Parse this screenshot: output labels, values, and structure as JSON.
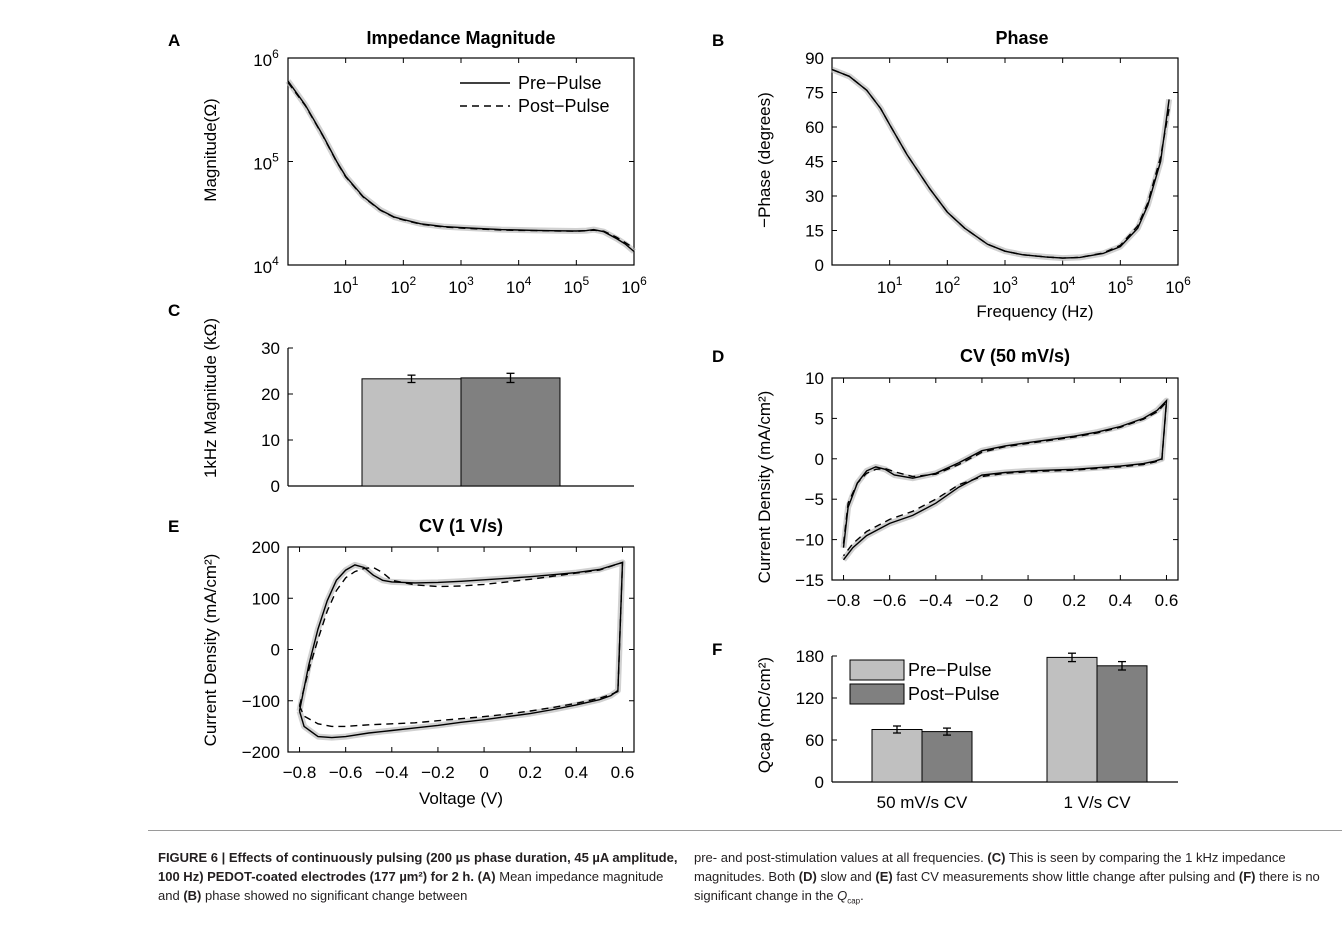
{
  "figure": {
    "panels": {
      "A": {
        "letter": "A",
        "title": "Impedance Magnitude",
        "ylabel": "Magnitude(Ω)",
        "legend": [
          "Pre−Pulse",
          "Post−Pulse"
        ]
      },
      "B": {
        "letter": "B",
        "title": "Phase",
        "ylabel": "−Phase (degrees)",
        "xlabel": "Frequency (Hz)"
      },
      "C": {
        "letter": "C",
        "ylabel": "1kHz Magnitude (kΩ)"
      },
      "D": {
        "letter": "D",
        "title": "CV (50 mV/s)",
        "ylabel": "Current Density (mA/cm²)"
      },
      "E": {
        "letter": "E",
        "title": "CV (1 V/s)",
        "ylabel": "Current Density (mA/cm²)",
        "xlabel": "Voltage (V)"
      },
      "F": {
        "letter": "F",
        "ylabel": "Qcap (mC/cm²)",
        "legend": [
          "Pre−Pulse",
          "Post−Pulse"
        ]
      }
    }
  },
  "colors": {
    "pre": "#c0c0c0",
    "post": "#808080",
    "band": "#bdbdbd",
    "line": "#000000"
  },
  "caption": {
    "left_bold": "FIGURE 6 | Effects of continuously pulsing (200 µs phase duration, 45 µA amplitude, 100 Hz) PEDOT-coated electrodes (177 µm²) for 2 h. (A)",
    "left_rest": " Mean impedance magnitude and ",
    "left_b2": "(B)",
    "left_rest2": " phase showed no significant change between",
    "right_1": "pre- and post-stimulation values at all frequencies. ",
    "right_c": "(C)",
    "right_2": " This is seen by comparing the 1 kHz impedance magnitudes. Both ",
    "right_d": "(D)",
    "right_3": " slow and ",
    "right_e": "(E)",
    "right_4": " fast CV measurements show little change after pulsing and ",
    "right_f": "(F)",
    "right_5": " there is no significant change in the ",
    "right_q": "Q",
    "right_qsub": "cap",
    "right_end": "."
  },
  "chart_data": [
    {
      "panel": "A",
      "type": "line",
      "title": "Impedance Magnitude",
      "xlabel": "",
      "ylabel": "Magnitude(Ω)",
      "xscale": "log",
      "yscale": "log",
      "xlim": [
        1,
        1000000
      ],
      "ylim": [
        10000,
        1000000
      ],
      "xticks": [
        "10^1",
        "10^2",
        "10^3",
        "10^4",
        "10^5",
        "10^6"
      ],
      "yticks": [
        "10^4",
        "10^5",
        "10^6"
      ],
      "legend_position": "top-right",
      "series": [
        {
          "name": "Pre−Pulse",
          "x": [
            1,
            2,
            4,
            7,
            10,
            20,
            40,
            70,
            100,
            200,
            500,
            1000,
            2000,
            5000,
            10000,
            20000,
            50000,
            100000,
            150000,
            200000,
            300000,
            500000,
            700000,
            1000000
          ],
          "y": [
            600000,
            350000,
            180000,
            100000,
            72000,
            46000,
            34000,
            29000,
            27500,
            25000,
            23500,
            23000,
            22500,
            22000,
            21800,
            21600,
            21400,
            21300,
            21500,
            22000,
            21000,
            18000,
            16000,
            13500
          ]
        },
        {
          "name": "Post−Pulse",
          "x": [
            1,
            2,
            4,
            7,
            10,
            20,
            40,
            70,
            100,
            200,
            500,
            1000,
            2000,
            5000,
            10000,
            20000,
            50000,
            100000,
            150000,
            200000,
            300000,
            500000,
            700000,
            1000000
          ],
          "y": [
            580000,
            345000,
            178000,
            99000,
            71000,
            45500,
            33800,
            28800,
            27300,
            24800,
            23300,
            22800,
            22300,
            21800,
            21600,
            21500,
            21300,
            21200,
            21400,
            21700,
            21200,
            18500,
            16500,
            14500
          ]
        }
      ]
    },
    {
      "panel": "B",
      "type": "line",
      "title": "Phase",
      "xlabel": "Frequency (Hz)",
      "ylabel": "−Phase (degrees)",
      "xscale": "log",
      "xlim": [
        1,
        1000000
      ],
      "ylim": [
        0,
        90
      ],
      "xticks": [
        "10^1",
        "10^2",
        "10^3",
        "10^4",
        "10^5",
        "10^6"
      ],
      "yticks": [
        0,
        15,
        30,
        45,
        60,
        75,
        90
      ],
      "series": [
        {
          "name": "Pre−Pulse",
          "x": [
            1,
            2,
            4,
            7,
            10,
            20,
            50,
            100,
            200,
            500,
            1000,
            2000,
            5000,
            10000,
            20000,
            50000,
            100000,
            200000,
            300000,
            500000,
            700000
          ],
          "y": [
            85,
            82,
            76,
            68,
            61,
            48,
            33,
            23,
            16,
            9,
            6,
            4.5,
            3.5,
            3,
            3.3,
            5,
            8,
            16,
            26,
            45,
            72
          ]
        },
        {
          "name": "Post−Pulse",
          "x": [
            1,
            2,
            4,
            7,
            10,
            20,
            50,
            100,
            200,
            500,
            1000,
            2000,
            5000,
            10000,
            20000,
            50000,
            100000,
            200000,
            300000,
            500000,
            700000
          ],
          "y": [
            85,
            82,
            76,
            68,
            61,
            48,
            33,
            23,
            16,
            9,
            6,
            4.5,
            3.5,
            3,
            3.3,
            5.2,
            8.5,
            17,
            27,
            47,
            68
          ]
        }
      ]
    },
    {
      "panel": "C",
      "type": "bar",
      "ylabel": "1kHz Magnitude (kΩ)",
      "ylim": [
        0,
        30
      ],
      "yticks": [
        0,
        10,
        20,
        30
      ],
      "categories": [
        "Pre−Pulse",
        "Post−Pulse"
      ],
      "values": [
        23.3,
        23.5
      ],
      "errors": [
        0.8,
        1.0
      ]
    },
    {
      "panel": "D",
      "type": "line",
      "title": "CV (50 mV/s)",
      "xlabel": "",
      "ylabel": "Current Density (mA/cm²)",
      "xlim": [
        -0.85,
        0.65
      ],
      "ylim": [
        -15,
        10
      ],
      "xticks": [
        -0.8,
        -0.6,
        -0.4,
        -0.2,
        0,
        0.2,
        0.4,
        0.6
      ],
      "yticks": [
        -15,
        -10,
        -5,
        0,
        5,
        10
      ],
      "series": [
        {
          "name": "Pre−Pulse",
          "x": [
            -0.8,
            -0.78,
            -0.74,
            -0.7,
            -0.66,
            -0.62,
            -0.58,
            -0.5,
            -0.4,
            -0.3,
            -0.2,
            -0.1,
            0,
            0.1,
            0.2,
            0.3,
            0.4,
            0.5,
            0.56,
            0.6,
            0.6,
            0.58,
            0.55,
            0.5,
            0.4,
            0.3,
            0.2,
            0.1,
            0,
            -0.1,
            -0.2,
            -0.3,
            -0.4,
            -0.5,
            -0.6,
            -0.7,
            -0.76,
            -0.8
          ],
          "y": [
            -11,
            -6,
            -3,
            -1.5,
            -1,
            -1.3,
            -2,
            -2.4,
            -1.8,
            -0.5,
            1,
            1.6,
            2,
            2.4,
            2.8,
            3.3,
            4,
            5,
            6,
            7.2,
            7.2,
            0,
            -0.3,
            -0.6,
            -0.9,
            -1.1,
            -1.3,
            -1.4,
            -1.5,
            -1.7,
            -2,
            -3.5,
            -5.5,
            -7,
            -8,
            -9.5,
            -11,
            -12.5
          ]
        },
        {
          "name": "Post−Pulse",
          "x": [
            -0.8,
            -0.78,
            -0.74,
            -0.7,
            -0.66,
            -0.62,
            -0.58,
            -0.5,
            -0.4,
            -0.3,
            -0.2,
            -0.1,
            0,
            0.1,
            0.2,
            0.3,
            0.4,
            0.5,
            0.56,
            0.6,
            0.6,
            0.58,
            0.55,
            0.5,
            0.4,
            0.3,
            0.2,
            0.1,
            0,
            -0.1,
            -0.2,
            -0.3,
            -0.4,
            -0.5,
            -0.6,
            -0.7,
            -0.76,
            -0.8
          ],
          "y": [
            -10.5,
            -5.5,
            -3,
            -1.8,
            -1.3,
            -1.2,
            -1.6,
            -2.2,
            -1.9,
            -0.7,
            0.8,
            1.5,
            1.9,
            2.3,
            2.7,
            3.2,
            3.9,
            4.9,
            5.8,
            7,
            7,
            -0.1,
            -0.4,
            -0.7,
            -1,
            -1.2,
            -1.4,
            -1.5,
            -1.6,
            -1.8,
            -2.2,
            -3.2,
            -5,
            -6.5,
            -7.5,
            -9,
            -10.5,
            -12
          ]
        }
      ]
    },
    {
      "panel": "E",
      "type": "line",
      "title": "CV (1 V/s)",
      "xlabel": "Voltage (V)",
      "ylabel": "Current Density (mA/cm²)",
      "xlim": [
        -0.85,
        0.65
      ],
      "ylim": [
        -200,
        200
      ],
      "xticks": [
        -0.8,
        -0.6,
        -0.4,
        -0.2,
        0,
        0.2,
        0.4,
        0.6
      ],
      "yticks": [
        -200,
        -100,
        0,
        100,
        200
      ],
      "series": [
        {
          "name": "Pre−Pulse",
          "x": [
            -0.8,
            -0.76,
            -0.72,
            -0.68,
            -0.64,
            -0.6,
            -0.56,
            -0.52,
            -0.48,
            -0.44,
            -0.4,
            -0.3,
            -0.2,
            -0.1,
            0,
            0.1,
            0.2,
            0.3,
            0.4,
            0.5,
            0.6,
            0.6,
            0.58,
            0.55,
            0.5,
            0.4,
            0.3,
            0.2,
            0.1,
            0,
            -0.1,
            -0.2,
            -0.3,
            -0.4,
            -0.5,
            -0.6,
            -0.66,
            -0.72,
            -0.78,
            -0.8
          ],
          "y": [
            -120,
            -30,
            40,
            95,
            135,
            155,
            165,
            160,
            145,
            135,
            132,
            130,
            131,
            133,
            136,
            139,
            142,
            146,
            150,
            156,
            170,
            170,
            -80,
            -90,
            -98,
            -108,
            -117,
            -125,
            -131,
            -137,
            -142,
            -148,
            -153,
            -158,
            -163,
            -170,
            -172,
            -170,
            -150,
            -120
          ]
        },
        {
          "name": "Post−Pulse",
          "x": [
            -0.8,
            -0.76,
            -0.72,
            -0.68,
            -0.64,
            -0.6,
            -0.56,
            -0.52,
            -0.48,
            -0.44,
            -0.4,
            -0.3,
            -0.2,
            -0.1,
            0,
            0.1,
            0.2,
            0.3,
            0.4,
            0.5,
            0.6,
            0.6,
            0.58,
            0.55,
            0.5,
            0.4,
            0.3,
            0.2,
            0.1,
            0,
            -0.1,
            -0.2,
            -0.3,
            -0.4,
            -0.5,
            -0.6,
            -0.66,
            -0.72,
            -0.78,
            -0.8
          ],
          "y": [
            -110,
            -40,
            20,
            75,
            115,
            140,
            152,
            158,
            160,
            150,
            135,
            126,
            123,
            124,
            127,
            132,
            137,
            143,
            149,
            155,
            170,
            170,
            -82,
            -88,
            -95,
            -105,
            -113,
            -120,
            -126,
            -131,
            -135,
            -139,
            -143,
            -145,
            -147,
            -150,
            -150,
            -145,
            -130,
            -110
          ]
        }
      ]
    },
    {
      "panel": "F",
      "type": "bar",
      "ylabel": "Qcap (mC/cm²)",
      "ylim": [
        0,
        180
      ],
      "yticks": [
        0,
        60,
        120,
        180
      ],
      "categories": [
        "50 mV/s CV",
        "1 V/s CV"
      ],
      "legend_position": "top-left",
      "series": [
        {
          "name": "Pre−Pulse",
          "values": [
            75,
            178
          ],
          "errors": [
            5,
            6
          ]
        },
        {
          "name": "Post−Pulse",
          "values": [
            72,
            166
          ],
          "errors": [
            5,
            6
          ]
        }
      ]
    }
  ]
}
